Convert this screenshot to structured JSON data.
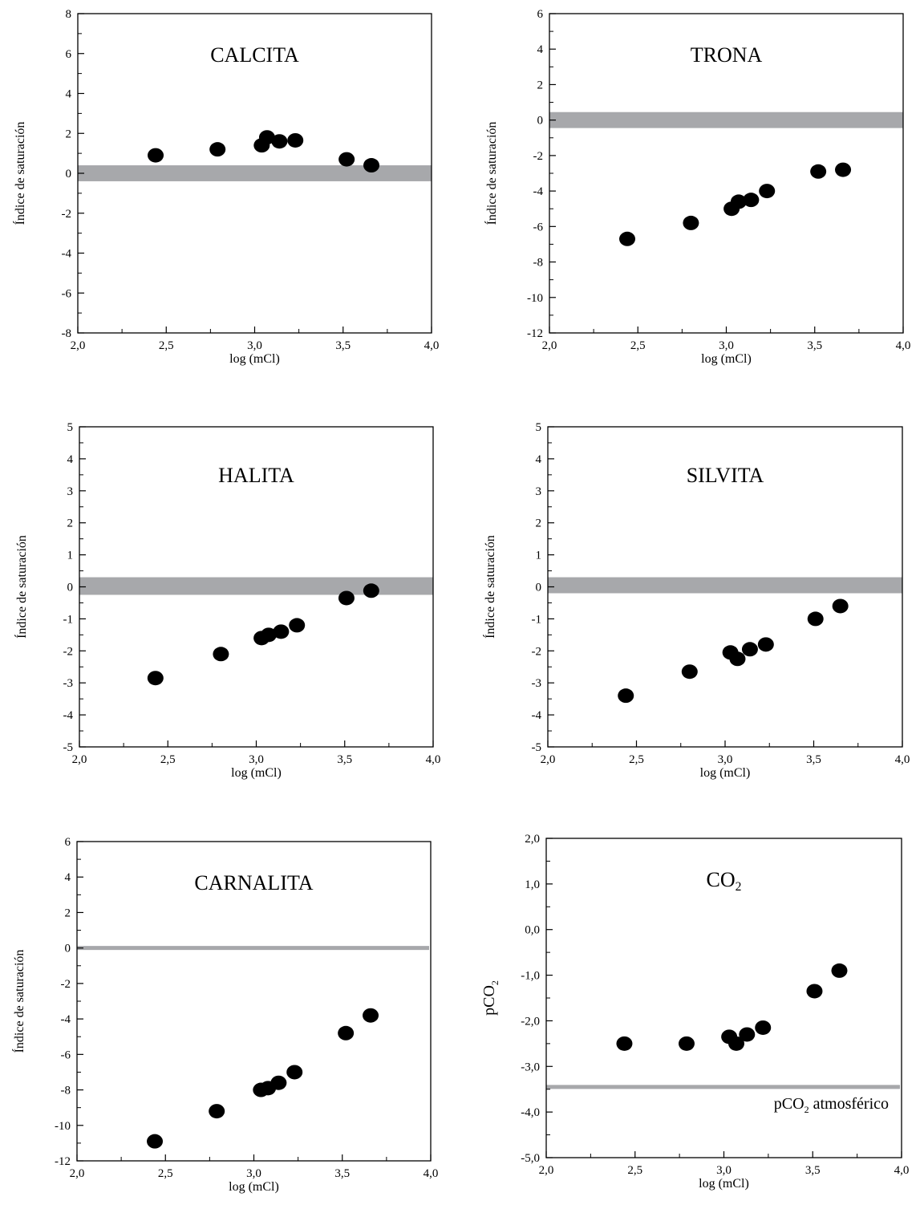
{
  "chart_data": [
    {
      "type": "scatter",
      "title": "CALCITA",
      "xlabel": "log (mCl)",
      "ylabel": "Índice de saturación",
      "xlim": [
        2.0,
        4.0
      ],
      "ylim": [
        -8,
        8
      ],
      "x_ticks": [
        "2,0",
        "2,5",
        "3,0",
        "3,5",
        "4,0"
      ],
      "y_ticks": [
        "-8",
        "-6",
        "-4",
        "-2",
        "0",
        "2",
        "4",
        "6",
        "8"
      ],
      "band": [
        -0.4,
        0.4
      ],
      "x": [
        2.44,
        2.79,
        3.04,
        3.07,
        3.14,
        3.23,
        3.52,
        3.66
      ],
      "y": [
        0.9,
        1.2,
        1.4,
        1.8,
        1.6,
        1.65,
        0.7,
        0.4
      ]
    },
    {
      "type": "scatter",
      "title": "TRONA",
      "xlabel": "log (mCl)",
      "ylabel": "Índice de saturación",
      "xlim": [
        2.0,
        4.0
      ],
      "ylim": [
        -12,
        6
      ],
      "x_ticks": [
        "2,0",
        "2,5",
        "3,0",
        "3,5",
        "4,0"
      ],
      "y_ticks": [
        "-12",
        "-10",
        "-8",
        "-6",
        "-4",
        "-2",
        "0",
        "2",
        "4",
        "6"
      ],
      "band": [
        -0.45,
        0.45
      ],
      "x": [
        2.44,
        2.8,
        3.03,
        3.07,
        3.14,
        3.23,
        3.52,
        3.66
      ],
      "y": [
        -6.7,
        -5.8,
        -5.0,
        -4.6,
        -4.5,
        -4.0,
        -2.9,
        -2.8
      ]
    },
    {
      "type": "scatter",
      "title": "HALITA",
      "xlabel": "log (mCl)",
      "ylabel": "Índice de saturación",
      "xlim": [
        2.0,
        4.0
      ],
      "ylim": [
        -5,
        5
      ],
      "x_ticks": [
        "2,0",
        "2,5",
        "3,0",
        "3,5",
        "4,0"
      ],
      "y_ticks": [
        "-5",
        "-4",
        "-3",
        "-2",
        "-1",
        "0",
        "1",
        "2",
        "3",
        "4",
        "5"
      ],
      "band": [
        -0.25,
        0.3
      ],
      "x": [
        2.43,
        2.8,
        3.03,
        3.07,
        3.14,
        3.23,
        3.51,
        3.65
      ],
      "y": [
        -2.85,
        -2.1,
        -1.6,
        -1.5,
        -1.4,
        -1.2,
        -0.35,
        -0.12
      ]
    },
    {
      "type": "scatter",
      "title": "SILVITA",
      "xlabel": "log (mCl)",
      "ylabel": "Índice de saturación",
      "xlim": [
        2.0,
        4.0
      ],
      "ylim": [
        -5,
        5
      ],
      "x_ticks": [
        "2,0",
        "2,5",
        "3,0",
        "3,5",
        "4,0"
      ],
      "y_ticks": [
        "-5",
        "-4",
        "-3",
        "-2",
        "-1",
        "0",
        "1",
        "2",
        "3",
        "4",
        "5"
      ],
      "band": [
        -0.2,
        0.3
      ],
      "x": [
        2.44,
        2.8,
        3.03,
        3.07,
        3.14,
        3.23,
        3.51,
        3.65
      ],
      "y": [
        -3.4,
        -2.65,
        -2.05,
        -2.25,
        -1.95,
        -1.8,
        -1.0,
        -0.6
      ]
    },
    {
      "type": "scatter",
      "title": "CARNALITA",
      "xlabel": "log (mCl)",
      "ylabel": "Índice de saturación",
      "xlim": [
        2.0,
        4.0
      ],
      "ylim": [
        -12,
        6
      ],
      "x_ticks": [
        "2,0",
        "2,5",
        "3,0",
        "3,5",
        "4,0"
      ],
      "y_ticks": [
        "-12",
        "-10",
        "-8",
        "-6",
        "-4",
        "-2",
        "0",
        "2",
        "4",
        "6"
      ],
      "line": 0,
      "x": [
        2.44,
        2.79,
        3.04,
        3.08,
        3.14,
        3.23,
        3.52,
        3.66
      ],
      "y": [
        -10.9,
        -9.2,
        -8.0,
        -7.9,
        -7.6,
        -7.0,
        -4.8,
        -3.8
      ]
    },
    {
      "type": "scatter",
      "title": "CO",
      "title_sub": "2",
      "xlabel": "log (mCl)",
      "ylabel": "pCO",
      "ylabel_sub": "2",
      "xlim": [
        2.0,
        4.0
      ],
      "ylim": [
        -5.0,
        2.0
      ],
      "x_ticks": [
        "2,0",
        "2,5",
        "3,0",
        "3,5",
        "4,0"
      ],
      "y_ticks": [
        "-5,0",
        "-4,0",
        "-3,0",
        "-2,0",
        "-1,0",
        "0,0",
        "1,0",
        "2,0"
      ],
      "line": -3.45,
      "annotation": {
        "pre": "pCO",
        "sub": "2",
        "post": " atmosférico"
      },
      "x": [
        2.44,
        2.79,
        3.03,
        3.07,
        3.13,
        3.22,
        3.51,
        3.65
      ],
      "y": [
        -2.5,
        -2.5,
        -2.35,
        -2.5,
        -2.3,
        -2.15,
        -1.35,
        -0.9
      ]
    }
  ]
}
